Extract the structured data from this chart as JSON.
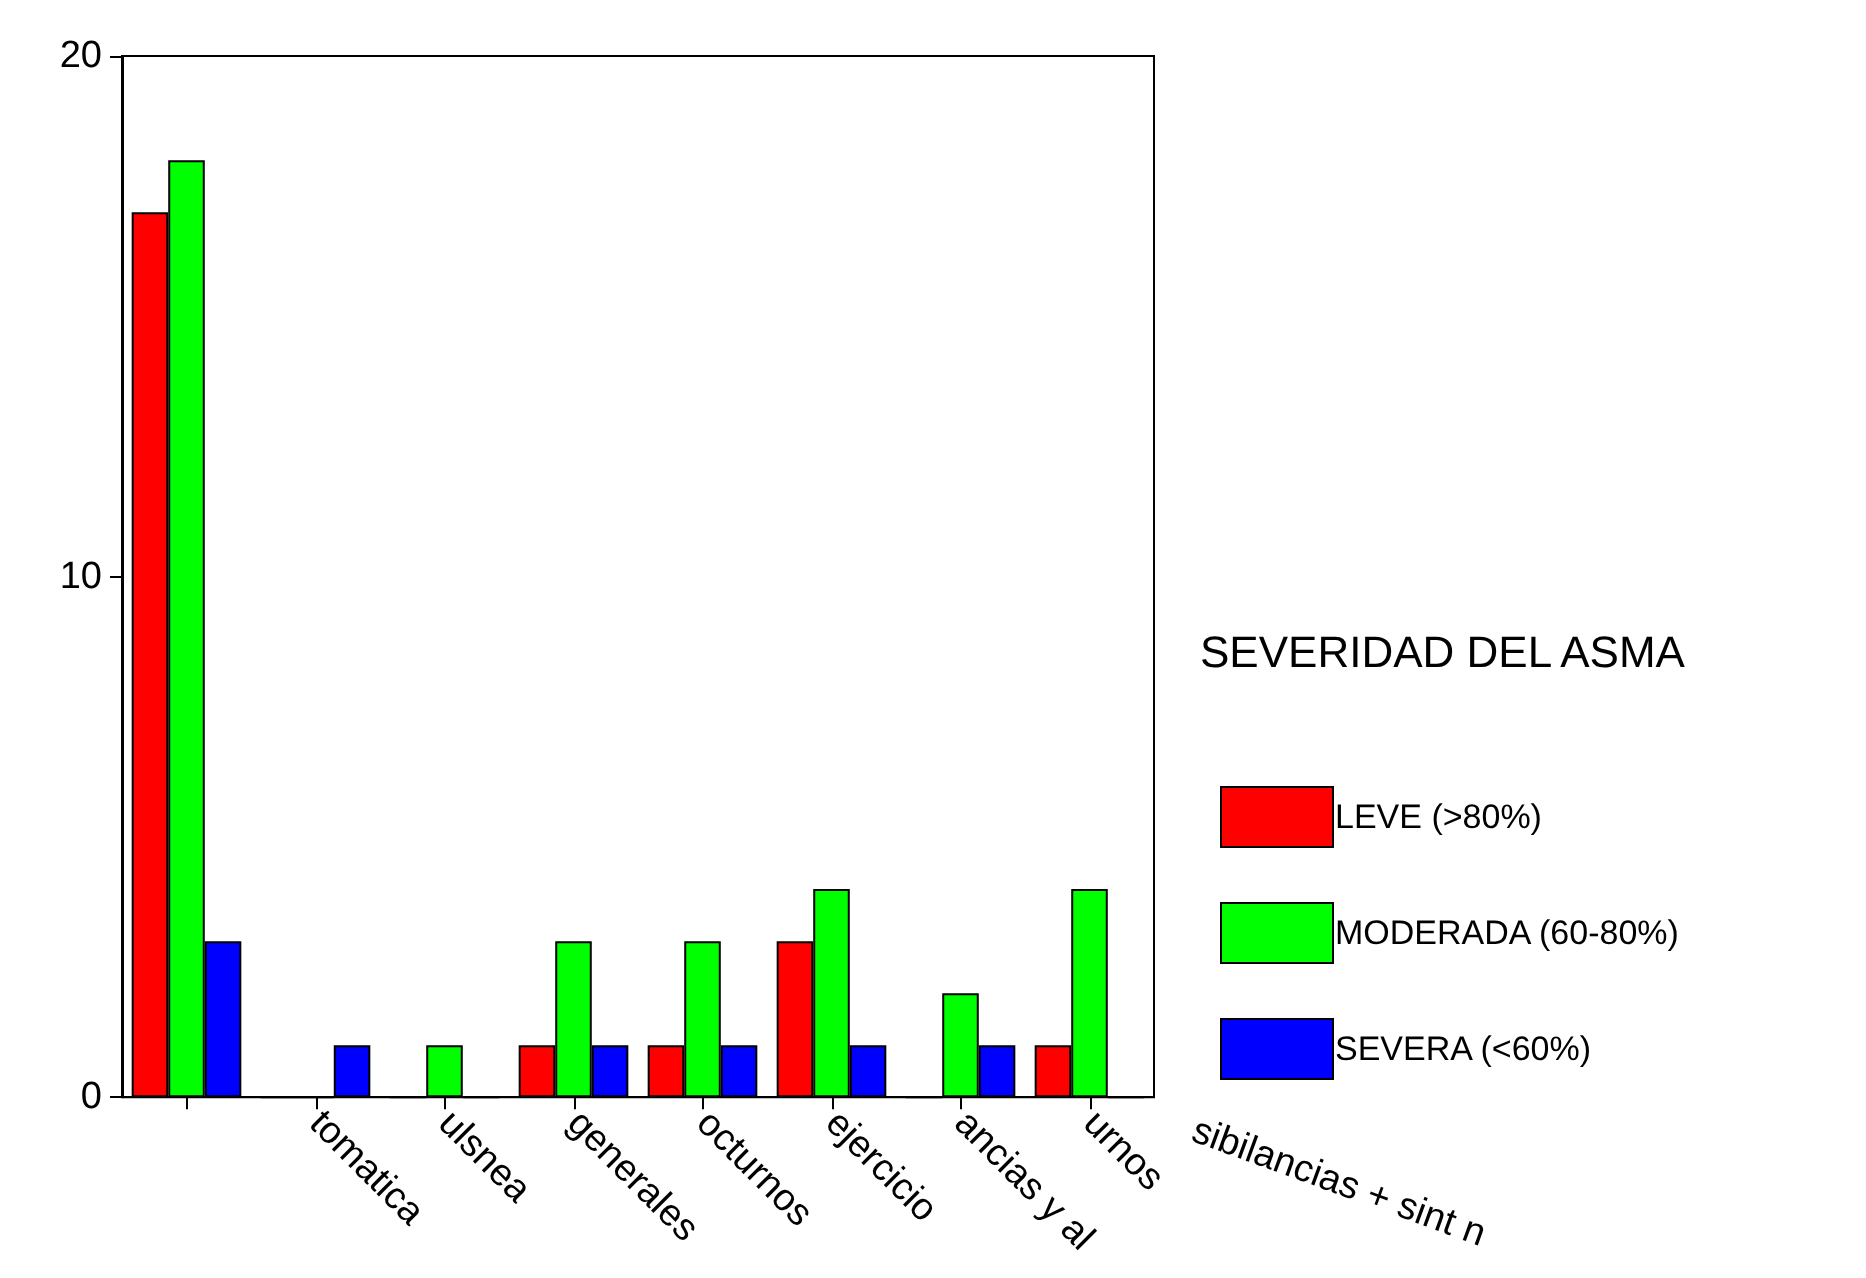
{
  "chart_data": {
    "type": "bar",
    "legend_title": "SEVERIDAD DEL ASMA",
    "categories": [
      null,
      "tomatica",
      "ulsnea",
      "generales",
      "octurnos",
      "ejercicio",
      "ancias y al",
      "urnos"
    ],
    "series": [
      {
        "name": "LEVE (>80%)",
        "color": "#ff0000",
        "values": [
          17,
          0,
          0,
          1,
          1,
          3,
          0,
          1
        ]
      },
      {
        "name": "MODERADA (60-80%)",
        "color": "#00ff00",
        "values": [
          18,
          0,
          1,
          3,
          3,
          4,
          2,
          4
        ]
      },
      {
        "name": "SEVERA (<60%)",
        "color": "#0000ff",
        "values": [
          3,
          1,
          0,
          1,
          1,
          1,
          1,
          0
        ]
      }
    ],
    "ylim": [
      0,
      20
    ],
    "yticks": [
      0,
      10,
      20
    ],
    "grid": false,
    "legend": "right",
    "annotations": [
      "sibilancias + sint n"
    ]
  }
}
